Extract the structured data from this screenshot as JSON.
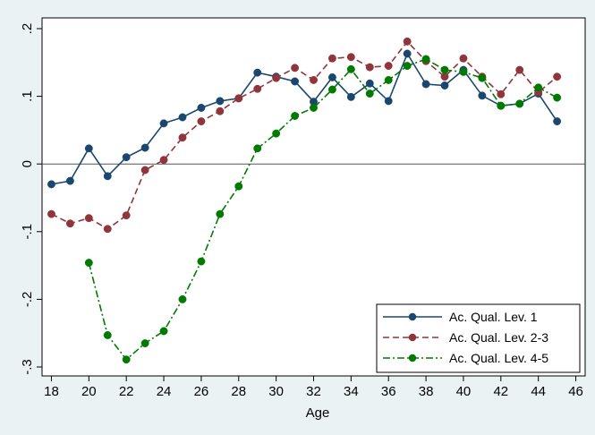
{
  "chart_data": {
    "type": "line",
    "xlabel": "Age",
    "ylabel": "",
    "xlim": [
      17.5,
      46.5
    ],
    "ylim": [
      -0.3,
      0.2
    ],
    "xticks": [
      "18",
      "20",
      "22",
      "24",
      "26",
      "28",
      "30",
      "32",
      "34",
      "36",
      "38",
      "40",
      "42",
      "44",
      "46"
    ],
    "yticks": [
      "-.3",
      "-.2",
      "-.1",
      "0",
      ".1",
      ".2"
    ],
    "reference_line_y": 0,
    "grid": false,
    "legend_position": "bottom-right",
    "series": [
      {
        "name": "Ac. Qual. Lev. 1",
        "color": "#1a476f",
        "dash": "solid",
        "x": [
          18,
          19,
          20,
          21,
          22,
          23,
          24,
          25,
          26,
          27,
          28,
          29,
          30,
          31,
          32,
          33,
          34,
          35,
          36,
          37,
          38,
          39,
          40,
          41,
          42,
          43,
          44,
          45
        ],
        "values": [
          -0.03,
          -0.025,
          0.023,
          -0.018,
          0.01,
          0.024,
          0.06,
          0.069,
          0.083,
          0.093,
          0.097,
          0.135,
          0.129,
          0.122,
          0.092,
          0.128,
          0.099,
          0.119,
          0.093,
          0.163,
          0.118,
          0.116,
          0.139,
          0.101,
          0.086,
          0.089,
          0.104,
          0.063
        ]
      },
      {
        "name": "Ac. Qual. Lev. 2-3",
        "color": "#90353b",
        "dash": "dash",
        "x": [
          18,
          19,
          20,
          21,
          22,
          23,
          24,
          25,
          26,
          27,
          28,
          29,
          30,
          31,
          32,
          33,
          34,
          35,
          36,
          37,
          38,
          39,
          40,
          41,
          42,
          43,
          44,
          45
        ],
        "values": [
          -0.074,
          -0.088,
          -0.08,
          -0.096,
          -0.076,
          -0.009,
          0.006,
          0.039,
          0.063,
          0.078,
          0.097,
          0.111,
          0.127,
          0.142,
          0.124,
          0.156,
          0.158,
          0.143,
          0.145,
          0.181,
          0.152,
          0.129,
          0.156,
          0.129,
          0.103,
          0.139,
          0.106,
          0.129
        ]
      },
      {
        "name": "Ac. Qual. Lev. 4-5",
        "color": "#007a00",
        "dash": "dashdot",
        "x": [
          20,
          21,
          22,
          23,
          24,
          25,
          26,
          27,
          28,
          29,
          30,
          31,
          32,
          33,
          34,
          35,
          36,
          37,
          38,
          39,
          40,
          41,
          42,
          43,
          44,
          45
        ],
        "values": [
          -0.146,
          -0.253,
          -0.289,
          -0.265,
          -0.247,
          -0.2,
          -0.144,
          -0.074,
          -0.033,
          0.023,
          0.045,
          0.071,
          0.083,
          0.11,
          0.14,
          0.104,
          0.124,
          0.145,
          0.155,
          0.139,
          0.136,
          0.127,
          0.086,
          0.089,
          0.113,
          0.098
        ]
      }
    ]
  }
}
